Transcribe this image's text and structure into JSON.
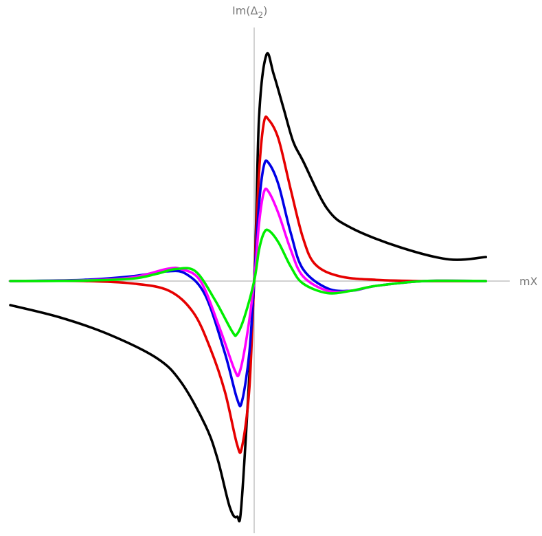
{
  "chart_data": {
    "type": "line",
    "title": "",
    "xlabel": "mX",
    "ylabel_main": "Im(Δ",
    "ylabel_sub": "2",
    "ylabel_close": ")",
    "xlim": [
      -1.0,
      1.0
    ],
    "ylim": [
      -1.0,
      1.0
    ],
    "grid": false,
    "ticks": false,
    "legend": "none",
    "series": [
      {
        "color": "#000000",
        "x": [
          -1.0,
          -0.8,
          -0.6,
          -0.4,
          -0.3,
          -0.2,
          -0.15,
          -0.1,
          -0.07,
          -0.05,
          0.0,
          0.02,
          0.05,
          0.08,
          0.12,
          0.16,
          0.2,
          0.3,
          0.4,
          0.6,
          0.8,
          0.95
        ],
        "y": [
          -0.1,
          -0.15,
          -0.22,
          -0.32,
          -0.42,
          -0.6,
          -0.74,
          -0.94,
          -0.98,
          -0.9,
          0.0,
          0.68,
          0.94,
          0.86,
          0.72,
          0.58,
          0.5,
          0.3,
          0.22,
          0.14,
          0.09,
          0.1
        ]
      },
      {
        "color": "#e60000",
        "x": [
          -1.0,
          -0.7,
          -0.5,
          -0.35,
          -0.25,
          -0.18,
          -0.12,
          -0.07,
          -0.05,
          -0.02,
          0.0,
          0.02,
          0.04,
          0.06,
          0.1,
          0.15,
          0.2,
          0.25,
          0.35,
          0.5,
          0.7,
          0.95
        ],
        "y": [
          0.0,
          0.0,
          -0.01,
          -0.04,
          -0.13,
          -0.28,
          -0.46,
          -0.68,
          -0.69,
          -0.45,
          0.0,
          0.45,
          0.66,
          0.67,
          0.59,
          0.38,
          0.18,
          0.07,
          0.02,
          0.005,
          0.0,
          0.0
        ]
      },
      {
        "color": "#0000e6",
        "x": [
          -1.0,
          -0.7,
          -0.5,
          -0.36,
          -0.28,
          -0.2,
          -0.12,
          -0.07,
          -0.05,
          -0.02,
          0.0,
          0.02,
          0.04,
          0.06,
          0.1,
          0.15,
          0.2,
          0.3,
          0.4,
          0.5,
          0.7,
          0.95
        ],
        "y": [
          0.0,
          0.005,
          0.02,
          0.04,
          0.03,
          -0.06,
          -0.3,
          -0.49,
          -0.5,
          -0.3,
          0.0,
          0.32,
          0.48,
          0.49,
          0.4,
          0.2,
          0.05,
          -0.03,
          -0.04,
          -0.02,
          0.0,
          0.0
        ]
      },
      {
        "color": "#ff00ff",
        "x": [
          -1.0,
          -0.7,
          -0.5,
          -0.36,
          -0.3,
          -0.22,
          -0.14,
          -0.08,
          -0.06,
          -0.03,
          0.0,
          0.02,
          0.04,
          0.06,
          0.1,
          0.15,
          0.2,
          0.3,
          0.4,
          0.5,
          0.7,
          0.95
        ],
        "y": [
          0.0,
          0.003,
          0.015,
          0.05,
          0.05,
          0.0,
          -0.2,
          -0.37,
          -0.38,
          -0.23,
          0.0,
          0.24,
          0.37,
          0.37,
          0.28,
          0.13,
          0.02,
          -0.04,
          -0.04,
          -0.02,
          0.0,
          0.0
        ]
      },
      {
        "color": "#00ee00",
        "x": [
          -1.0,
          -0.7,
          -0.5,
          -0.4,
          -0.32,
          -0.24,
          -0.16,
          -0.09,
          -0.07,
          -0.04,
          0.0,
          0.02,
          0.04,
          0.06,
          0.1,
          0.15,
          0.2,
          0.3,
          0.4,
          0.5,
          0.7,
          0.95
        ],
        "y": [
          0.0,
          0.002,
          0.01,
          0.03,
          0.05,
          0.04,
          -0.08,
          -0.21,
          -0.22,
          -0.15,
          0.0,
          0.13,
          0.2,
          0.21,
          0.16,
          0.06,
          -0.01,
          -0.05,
          -0.04,
          -0.02,
          0.0,
          0.0
        ]
      }
    ]
  }
}
